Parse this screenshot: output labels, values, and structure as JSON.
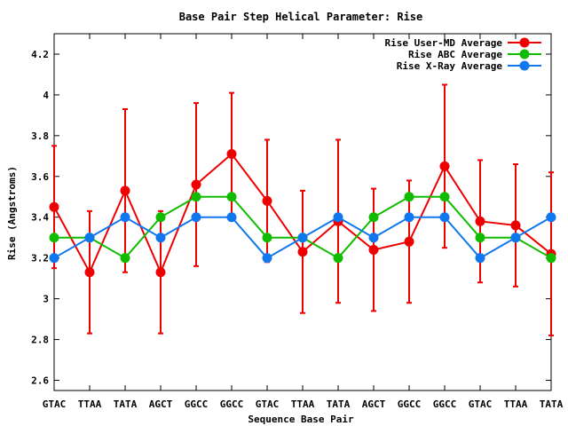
{
  "chart_data": {
    "type": "line",
    "title": "Base Pair Step Helical Parameter: Rise",
    "xlabel": "Sequence Base Pair",
    "ylabel": "Rise (Angstroms)",
    "categories": [
      "GTAC",
      "TTAA",
      "TATA",
      "AGCT",
      "GGCC",
      "GGCC",
      "GTAC",
      "TTAA",
      "TATA",
      "AGCT",
      "GGCC",
      "GGCC",
      "GTAC",
      "TTAA",
      "TATA"
    ],
    "ylim": [
      2.55,
      4.3
    ],
    "yticks": [
      "2.6",
      "2.8",
      "3",
      "3.2",
      "3.4",
      "3.6",
      "3.8",
      "4",
      "4.2"
    ],
    "legend_position": "top-right",
    "grid": false,
    "series": [
      {
        "name": "Rise User-MD Average",
        "color": "#ee0000",
        "values": [
          3.45,
          3.13,
          3.53,
          3.13,
          3.56,
          3.71,
          3.48,
          3.23,
          3.38,
          3.24,
          3.28,
          3.65,
          3.38,
          3.36,
          3.22
        ],
        "errors": [
          0.3,
          0.3,
          0.4,
          0.3,
          0.4,
          0.3,
          0.3,
          0.3,
          0.4,
          0.3,
          0.3,
          0.4,
          0.3,
          0.3,
          0.4
        ]
      },
      {
        "name": "Rise ABC Average",
        "color": "#11bb00",
        "values": [
          3.3,
          3.3,
          3.2,
          3.4,
          3.5,
          3.5,
          3.3,
          3.3,
          3.2,
          3.4,
          3.5,
          3.5,
          3.3,
          3.3,
          3.2
        ]
      },
      {
        "name": "Rise X-Ray Average",
        "color": "#1177ee",
        "values": [
          3.2,
          3.3,
          3.4,
          3.3,
          3.4,
          3.4,
          3.2,
          3.3,
          3.4,
          3.3,
          3.4,
          3.4,
          3.2,
          3.3,
          3.4
        ]
      }
    ]
  }
}
